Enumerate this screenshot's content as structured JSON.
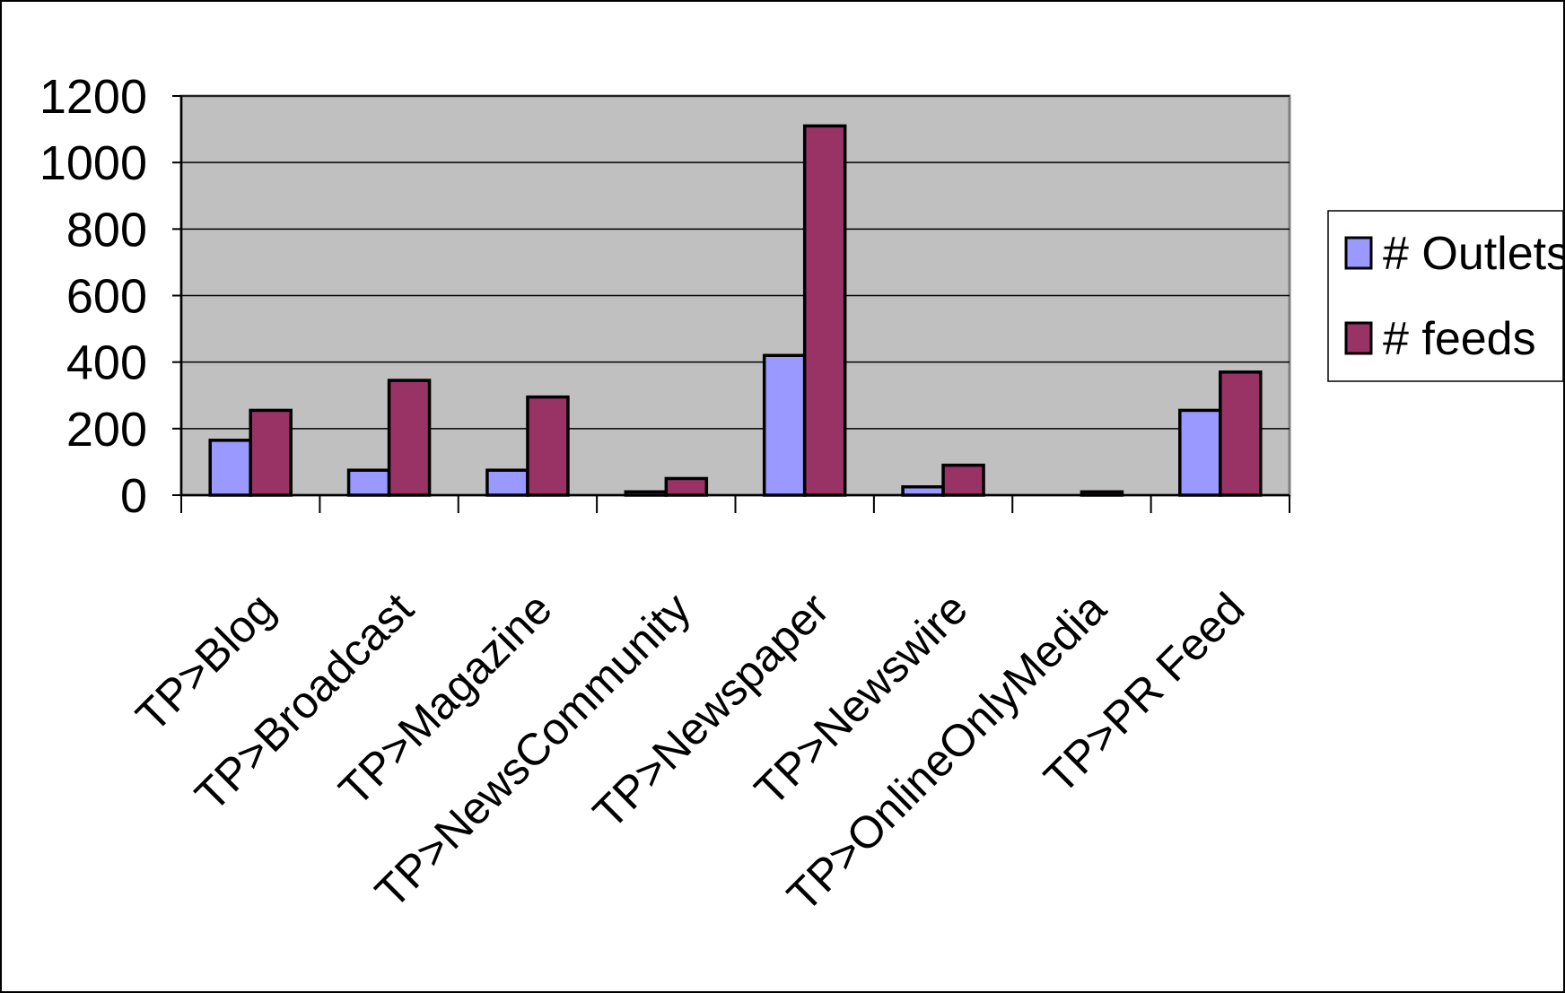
{
  "chart_data": {
    "type": "bar",
    "categories": [
      "TP>Blog",
      "TP>Broadcast",
      "TP>Magazine",
      "TP>NewsCommunity",
      "TP>Newspaper",
      "TP>Newswire",
      "TP>OnlineOnlyMedia",
      "TP>PR Feed"
    ],
    "series": [
      {
        "name": "# Outlets",
        "color": "#9999ff",
        "values": [
          165,
          75,
          75,
          10,
          420,
          25,
          0,
          255
        ]
      },
      {
        "name": "# feeds",
        "color": "#993366",
        "values": [
          255,
          345,
          295,
          50,
          1110,
          90,
          10,
          370
        ]
      }
    ],
    "ylim": [
      0,
      1200
    ],
    "yticks": [
      "0",
      "200",
      "400",
      "600",
      "800",
      "1000",
      "1200"
    ],
    "title": "",
    "xlabel": "",
    "ylabel": "",
    "grid": true,
    "legend_position": "right",
    "plot_background": "#c0c0c0"
  }
}
